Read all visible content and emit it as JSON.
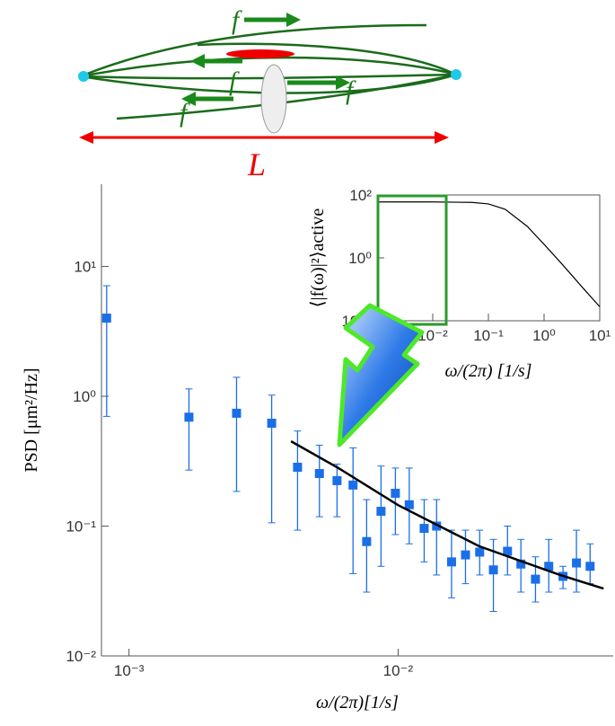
{
  "diagram": {
    "force_labels": [
      "f",
      "f",
      "f",
      "f"
    ],
    "length_label": "L"
  },
  "chart_data": [
    {
      "type": "scatter",
      "log_x": true,
      "log_y": true,
      "xlabel": "ω/(2π)[1/s]",
      "ylabel": "PSD [μm²/Hz]",
      "xlim": [
        0.00079,
        0.063
      ],
      "ylim": [
        0.01,
        43
      ],
      "xticks": [
        {
          "value": 0.001,
          "label": "10⁻³"
        },
        {
          "value": 0.01,
          "label": "10⁻²"
        }
      ],
      "yticks": [
        {
          "value": 0.01,
          "label": "10⁻²"
        },
        {
          "value": 0.1,
          "label": "10⁻¹"
        },
        {
          "value": 1,
          "label": "10⁰"
        },
        {
          "value": 10,
          "label": "10¹"
        }
      ],
      "series": [
        {
          "type": "scatter",
          "color": "#1a6fe8",
          "x": [
            0.000826,
            0.00167,
            0.00251,
            0.00339,
            0.00423,
            0.0051,
            0.00593,
            0.0068,
            0.00764,
            0.00864,
            0.00977,
            0.011,
            0.0125,
            0.0139,
            0.0158,
            0.0178,
            0.0201,
            0.0226,
            0.0255,
            0.0286,
            0.0324,
            0.0363,
            0.041,
            0.046,
            0.0517
          ],
          "values": [
            4.0,
            0.69,
            0.74,
            0.62,
            0.284,
            0.254,
            0.224,
            0.207,
            0.076,
            0.13,
            0.179,
            0.146,
            0.096,
            0.1,
            0.053,
            0.06,
            0.063,
            0.046,
            0.064,
            0.051,
            0.039,
            0.049,
            0.041,
            0.052,
            0.049
          ],
          "lower": [
            0.7,
            0.27,
            0.185,
            0.106,
            0.093,
            0.118,
            0.118,
            0.043,
            0.031,
            0.049,
            0.086,
            0.073,
            0.053,
            0.042,
            0.028,
            0.036,
            0.042,
            0.022,
            0.042,
            0.031,
            0.026,
            0.031,
            0.033,
            0.031,
            0.036
          ],
          "upper": [
            7.1,
            1.14,
            1.4,
            1.02,
            0.54,
            0.42,
            0.3,
            0.4,
            0.16,
            0.29,
            0.28,
            0.28,
            0.16,
            0.16,
            0.093,
            0.093,
            0.093,
            0.079,
            0.1,
            0.079,
            0.058,
            0.079,
            0.049,
            0.093,
            0.073
          ]
        },
        {
          "type": "line",
          "color": "#000000",
          "x": [
            0.004,
            0.006,
            0.01,
            0.02,
            0.04,
            0.058
          ],
          "values": [
            0.45,
            0.28,
            0.145,
            0.07,
            0.042,
            0.033
          ]
        }
      ]
    },
    {
      "type": "line",
      "log_x": true,
      "log_y": true,
      "xlabel": "ω/(2π) [1/s]",
      "ylabel": "⟨|f(ω)|²⟩active",
      "xlim": [
        0.001,
        10
      ],
      "ylim": [
        0.01,
        100
      ],
      "xticks": [
        {
          "value": 0.01,
          "label": "10⁻²"
        },
        {
          "value": 0.1,
          "label": "10⁻¹"
        },
        {
          "value": 1,
          "label": "10⁰"
        },
        {
          "value": 10,
          "label": "10¹"
        }
      ],
      "yticks": [
        {
          "value": 0.01,
          "label": "10⁻²"
        },
        {
          "value": 1,
          "label": "10⁰"
        },
        {
          "value": 100,
          "label": "10²"
        }
      ],
      "series": [
        {
          "color": "#000000",
          "x": [
            0.001,
            0.01,
            0.05,
            0.1,
            0.2,
            0.5,
            1,
            2,
            5,
            10
          ],
          "values": [
            60,
            60,
            58,
            52,
            35,
            10,
            2.7,
            0.7,
            0.11,
            0.028
          ]
        }
      ]
    }
  ]
}
